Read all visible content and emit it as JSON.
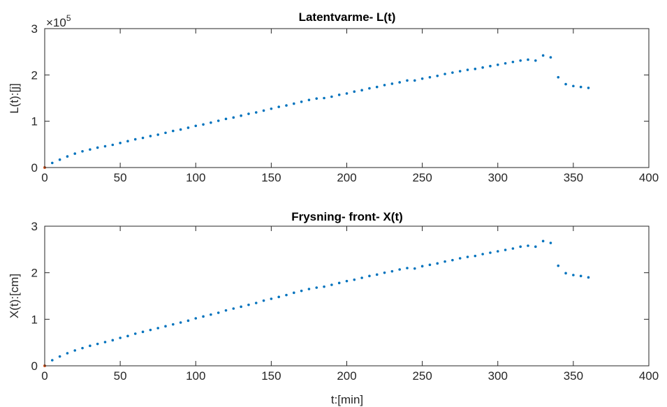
{
  "colors": {
    "series": "#0072BD",
    "origin": "#D95319",
    "axis": "#262626"
  },
  "chart_data": [
    {
      "type": "scatter",
      "title": "Latentvarme- L(t)",
      "xlabel": "",
      "ylabel": "L(t):[j]",
      "xlim": [
        0,
        400
      ],
      "ylim": [
        0,
        3
      ],
      "xticks": [
        "0",
        "50",
        "100",
        "150",
        "200",
        "250",
        "300",
        "350",
        "400"
      ],
      "yticks": [
        "0",
        "1",
        "2",
        "3"
      ],
      "y_exponent_label": "×10",
      "y_exponent_power": "5",
      "grid": false,
      "series": [
        {
          "x": [
            0,
            5,
            10,
            15,
            20,
            25,
            30,
            35,
            40,
            45,
            50,
            55,
            60,
            65,
            70,
            75,
            80,
            85,
            90,
            95,
            100,
            105,
            110,
            115,
            120,
            125,
            130,
            135,
            140,
            145,
            150,
            155,
            160,
            165,
            170,
            175,
            180,
            185,
            190,
            195,
            200,
            205,
            210,
            215,
            220,
            225,
            230,
            235,
            240,
            245,
            250,
            255,
            260,
            265,
            270,
            275,
            280,
            285,
            290,
            295,
            300,
            305,
            310,
            315,
            320,
            325,
            330,
            335,
            340,
            345,
            350,
            355,
            360
          ],
          "y": [
            0.0,
            0.1,
            0.17,
            0.24,
            0.3,
            0.35,
            0.39,
            0.43,
            0.46,
            0.49,
            0.53,
            0.57,
            0.61,
            0.64,
            0.68,
            0.71,
            0.75,
            0.79,
            0.82,
            0.86,
            0.9,
            0.93,
            0.97,
            1.01,
            1.05,
            1.08,
            1.12,
            1.16,
            1.19,
            1.23,
            1.27,
            1.31,
            1.34,
            1.38,
            1.42,
            1.46,
            1.49,
            1.5,
            1.53,
            1.57,
            1.6,
            1.64,
            1.67,
            1.71,
            1.74,
            1.78,
            1.81,
            1.84,
            1.88,
            1.88,
            1.92,
            1.95,
            1.98,
            2.02,
            2.05,
            2.08,
            2.11,
            2.13,
            2.16,
            2.19,
            2.22,
            2.25,
            2.28,
            2.31,
            2.33,
            2.31,
            2.42,
            2.38,
            1.95,
            1.8,
            1.76,
            1.74,
            1.72
          ]
        }
      ]
    },
    {
      "type": "scatter",
      "title": "Frysning- front- X(t)",
      "xlabel": "t:[min]",
      "ylabel": "X(t):[cm]",
      "xlim": [
        0,
        400
      ],
      "ylim": [
        0,
        3
      ],
      "xticks": [
        "0",
        "50",
        "100",
        "150",
        "200",
        "250",
        "300",
        "350",
        "400"
      ],
      "yticks": [
        "0",
        "1",
        "2",
        "3"
      ],
      "grid": false,
      "series": [
        {
          "x": [
            0,
            5,
            10,
            15,
            20,
            25,
            30,
            35,
            40,
            45,
            50,
            55,
            60,
            65,
            70,
            75,
            80,
            85,
            90,
            95,
            100,
            105,
            110,
            115,
            120,
            125,
            130,
            135,
            140,
            145,
            150,
            155,
            160,
            165,
            170,
            175,
            180,
            185,
            190,
            195,
            200,
            205,
            210,
            215,
            220,
            225,
            230,
            235,
            240,
            245,
            250,
            255,
            260,
            265,
            270,
            275,
            280,
            285,
            290,
            295,
            300,
            305,
            310,
            315,
            320,
            325,
            330,
            335,
            340,
            345,
            350,
            355,
            360
          ],
          "y": [
            0.0,
            0.12,
            0.2,
            0.27,
            0.33,
            0.38,
            0.43,
            0.47,
            0.51,
            0.55,
            0.6,
            0.64,
            0.69,
            0.73,
            0.77,
            0.81,
            0.85,
            0.89,
            0.93,
            0.97,
            1.02,
            1.06,
            1.1,
            1.14,
            1.19,
            1.23,
            1.27,
            1.31,
            1.35,
            1.4,
            1.44,
            1.48,
            1.52,
            1.57,
            1.61,
            1.65,
            1.68,
            1.7,
            1.74,
            1.78,
            1.82,
            1.85,
            1.89,
            1.93,
            1.96,
            2.0,
            2.03,
            2.07,
            2.1,
            2.09,
            2.14,
            2.17,
            2.2,
            2.24,
            2.27,
            2.31,
            2.34,
            2.36,
            2.4,
            2.43,
            2.46,
            2.49,
            2.52,
            2.56,
            2.58,
            2.56,
            2.68,
            2.64,
            2.15,
            1.99,
            1.95,
            1.93,
            1.9
          ]
        }
      ]
    }
  ]
}
